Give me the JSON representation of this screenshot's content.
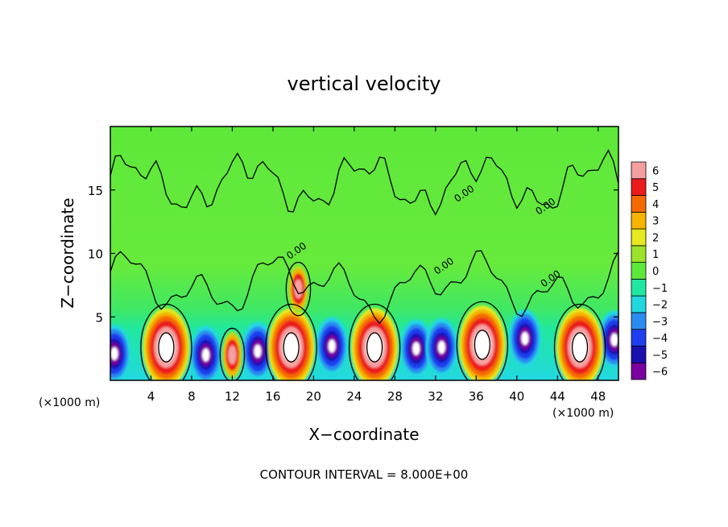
{
  "chart_data": {
    "type": "heatmap",
    "title": "vertical velocity",
    "xlabel": "X−coordinate",
    "ylabel": "Z−coordinate",
    "x_unit_left": "(×1000 m)",
    "x_unit_right": "(×1000 m)",
    "footer": "CONTOUR INTERVAL = 8.000E+00",
    "xlim": [
      0,
      50
    ],
    "ylim": [
      0,
      20
    ],
    "x_ticks": [
      4,
      8,
      12,
      16,
      20,
      24,
      28,
      32,
      36,
      40,
      44,
      48
    ],
    "x_tick_labels": [
      "4",
      "8",
      "12",
      "16",
      "20",
      "24",
      "28",
      "32",
      "36",
      "40",
      "44",
      "48"
    ],
    "y_ticks": [
      5,
      10,
      15
    ],
    "y_tick_labels": [
      "5",
      "10",
      "15"
    ],
    "colorbar": {
      "levels": [
        -6,
        -5,
        -4,
        -3,
        -2,
        -1,
        0,
        1,
        2,
        3,
        4,
        5,
        6
      ],
      "labels": [
        "−6",
        "−5",
        "−4",
        "−3",
        "−2",
        "−1",
        "0",
        "1",
        "2",
        "3",
        "4",
        "5",
        "6"
      ],
      "colors": [
        "#7a00a0",
        "#1a10b0",
        "#1f3ef0",
        "#2a8cf0",
        "#22d8e0",
        "#20e8a0",
        "#5ee83a",
        "#9ae32a",
        "#e6e820",
        "#f4b400",
        "#f56a00",
        "#ec1c1c",
        "#f4a0a0"
      ]
    },
    "contour_labels": [
      "0.00",
      "0.00",
      "0.00",
      "0.00",
      "0.00"
    ],
    "updraft_cores": [
      {
        "x": 5.5,
        "z": 2.6
      },
      {
        "x": 17.8,
        "z": 2.6
      },
      {
        "x": 26.0,
        "z": 2.6
      },
      {
        "x": 36.6,
        "z": 2.8
      },
      {
        "x": 46.2,
        "z": 2.6
      }
    ],
    "weak_updrafts": [
      {
        "x": 12.0,
        "z": 2.0
      },
      {
        "x": 18.5,
        "z": 7.2
      }
    ],
    "downdraft_cores": [
      {
        "x": 0.4,
        "z": 2.1
      },
      {
        "x": 9.4,
        "z": 2.0
      },
      {
        "x": 14.5,
        "z": 2.3
      },
      {
        "x": 21.8,
        "z": 2.7
      },
      {
        "x": 30.1,
        "z": 2.5
      },
      {
        "x": 32.6,
        "z": 2.6
      },
      {
        "x": 40.8,
        "z": 3.3
      },
      {
        "x": 49.6,
        "z": 3.2
      }
    ]
  }
}
